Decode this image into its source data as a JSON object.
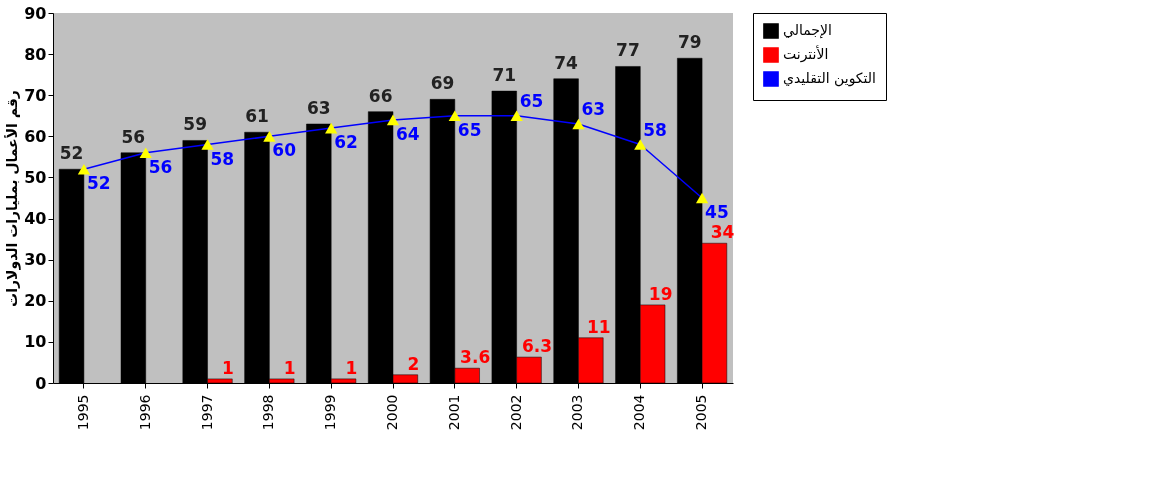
{
  "chart_data": {
    "type": "bar",
    "ylabel": "رقم الأعمال بمليارات الدولارات",
    "categories": [
      "1995",
      "1996",
      "1997",
      "1998",
      "1999",
      "2000",
      "2001",
      "2002",
      "2003",
      "2004",
      "2005"
    ],
    "series": [
      {
        "name": "الإجمالي",
        "color": "#000000",
        "values": [
          52,
          56,
          59,
          61,
          63,
          66,
          69,
          71,
          74,
          77,
          79
        ]
      },
      {
        "name": "الأنترنت",
        "color": "#ff0000",
        "values": [
          null,
          null,
          1,
          1,
          1,
          2,
          3.6,
          6.3,
          11,
          19,
          34
        ]
      },
      {
        "name": "التكوين التقليدي",
        "color": "#0000ff",
        "type": "line",
        "marker": "triangle",
        "values": [
          52,
          56,
          58,
          60,
          62,
          64,
          65,
          65,
          63,
          58,
          45
        ]
      }
    ],
    "ylim": [
      0,
      90
    ],
    "yticks": [
      0,
      10,
      20,
      30,
      40,
      50,
      60,
      70,
      80,
      90
    ],
    "data_labels": true,
    "grid": false,
    "legend": "top right",
    "line_style": "solid"
  }
}
